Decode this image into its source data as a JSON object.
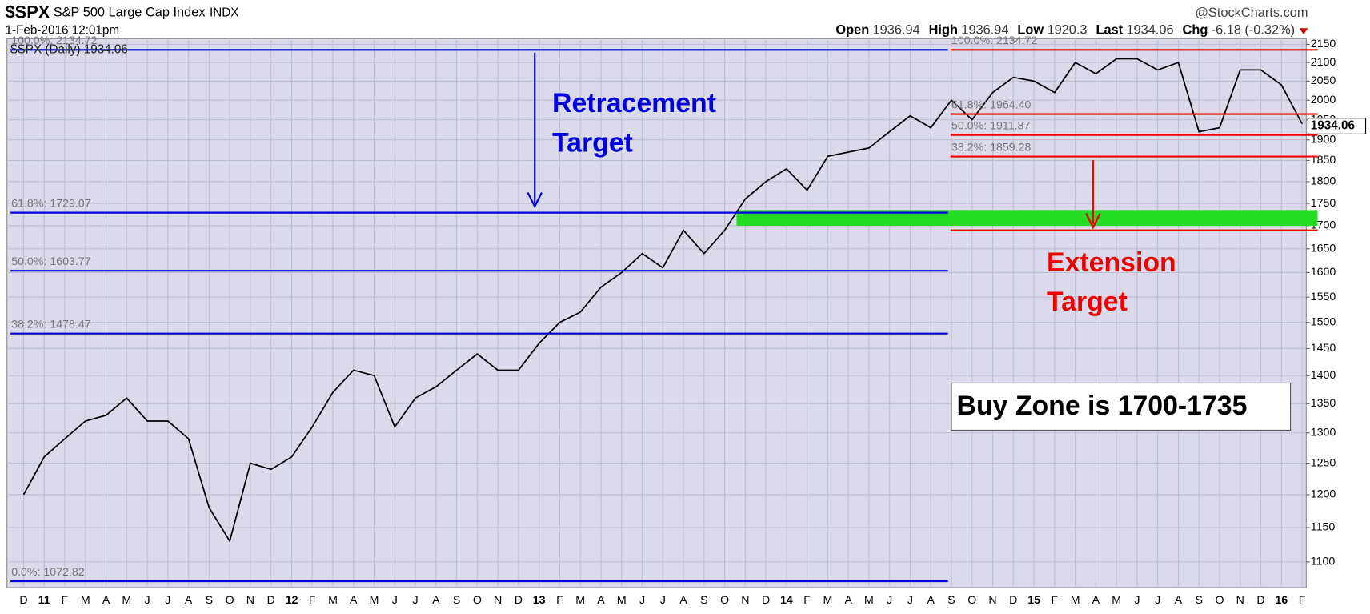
{
  "chart_data": {
    "type": "line",
    "title": "$SPX",
    "subtitle": "S&P 500 Large Cap Index",
    "exchange": "INDX",
    "source": "@StockCharts.com",
    "date": "1-Feb-2016 12:01pm",
    "quote": [
      {
        "label": "Open",
        "value": 1936.94
      },
      {
        "label": "High",
        "value": 1936.94
      },
      {
        "label": "Low",
        "value": 1920.3
      },
      {
        "label": "Last",
        "value": 1934.06
      },
      {
        "label": "Chg",
        "value": -6.18
      }
    ],
    "change_pct": {
      "value": -0.32,
      "label": "(-0.32%)"
    },
    "categories": [
      "D",
      "11",
      "F",
      "M",
      "A",
      "M",
      "J",
      "J",
      "A",
      "S",
      "O",
      "N",
      "D",
      "12",
      "F",
      "M",
      "A",
      "M",
      "J",
      "J",
      "A",
      "S",
      "O",
      "N",
      "D",
      "13",
      "F",
      "M",
      "A",
      "M",
      "J",
      "J",
      "A",
      "S",
      "O",
      "N",
      "D",
      "14",
      "F",
      "M",
      "A",
      "M",
      "J",
      "J",
      "A",
      "S",
      "O",
      "N",
      "D",
      "15",
      "F",
      "M",
      "A",
      "M",
      "J",
      "J",
      "A",
      "S",
      "O",
      "N",
      "D",
      "16",
      "F"
    ],
    "series": [
      {
        "name": "$SPX (Daily) 1934.06",
        "color": "#000000",
        "values": [
          1200,
          1260,
          1290,
          1320,
          1330,
          1360,
          1320,
          1320,
          1290,
          1180,
          1130,
          1250,
          1240,
          1260,
          1310,
          1370,
          1410,
          1400,
          1310,
          1360,
          1380,
          1410,
          1440,
          1410,
          1410,
          1460,
          1500,
          1520,
          1570,
          1600,
          1640,
          1610,
          1690,
          1640,
          1690,
          1760,
          1800,
          1830,
          1780,
          1860,
          1870,
          1880,
          1920,
          1960,
          1930,
          2000,
          1950,
          2020,
          2060,
          2050,
          2020,
          2100,
          2070,
          2110,
          2110,
          2080,
          2100,
          1920,
          1930,
          2080,
          2080,
          2040,
          1940
        ]
      }
    ],
    "last_value": 1934.06,
    "ylim": [
      1064,
      2166
    ],
    "log_scale": true,
    "yticks": [
      1100,
      1150,
      1200,
      1250,
      1300,
      1350,
      1400,
      1450,
      1500,
      1550,
      1600,
      1650,
      1700,
      1750,
      1800,
      1850,
      1900,
      1950,
      2000,
      2050,
      2100,
      2150
    ],
    "grid": true,
    "retracement": {
      "color": "#0000dd",
      "levels": [
        {
          "label": "0.0%: 1072.82",
          "value": 1072.82
        },
        {
          "label": "38.2%: 1478.47",
          "value": 1478.47
        },
        {
          "label": "50.0%: 1603.77",
          "value": 1603.77
        },
        {
          "label": "61.8%: 1729.07",
          "value": 1729.07
        },
        {
          "label": "100.0%: 2134.72",
          "value": 2134.72
        }
      ]
    },
    "extension": {
      "color": "#ee0000",
      "levels": [
        {
          "label": "38.2%: 1859.28",
          "value": 1859.28
        },
        {
          "label": "50.0%: 1911.87",
          "value": 1911.87
        },
        {
          "label": "61.8%: 1964.40",
          "value": 1964.4
        },
        {
          "label": "100.0%: 2134.72",
          "value": 2134.72
        }
      ]
    },
    "extension_target": 1690,
    "buy_zone": {
      "range": [
        1700,
        1735
      ],
      "color": "#22dd22",
      "label": "Buy Zone is 1700-1735"
    },
    "annotations": {
      "retracement": [
        "Retracement",
        "Target"
      ],
      "extension": [
        "Extension",
        "Target"
      ]
    }
  }
}
